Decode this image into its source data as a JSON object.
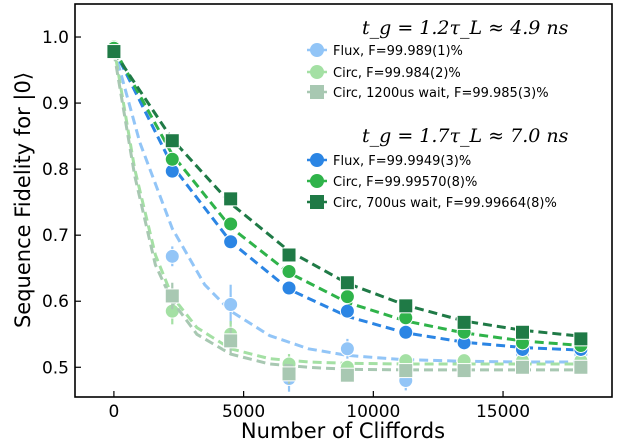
{
  "chart_data": {
    "type": "scatter",
    "xlabel": "Number of Cliffords",
    "ylabel": "Sequence Fidelity for |0⟩",
    "xlim": [
      -1500,
      19200
    ],
    "ylim": [
      0.455,
      1.05
    ],
    "xticks": [
      0,
      5000,
      10000,
      15000
    ],
    "xtick_labels": [
      "0",
      "5000",
      "10000",
      "15000"
    ],
    "yticks": [
      0.5,
      0.6,
      0.7,
      0.8,
      0.9,
      1.0
    ],
    "ytick_labels": [
      "0.5",
      "0.6",
      "0.7",
      "0.8",
      "0.9",
      "1.0"
    ],
    "grid": false,
    "legend_placement": "top-right",
    "groups": [
      {
        "title": "t_g = 1.2τ_L ≈ 4.9 ns",
        "series": [
          {
            "name": "Flux, F=99.989(1)%",
            "marker": "circle",
            "color": "#92c5f7",
            "x": [
              0,
              2250,
              4500,
              6750,
              9000,
              11250,
              13500,
              15750,
              18000
            ],
            "y": [
              0.983,
              0.668,
              0.595,
              0.483,
              0.528,
              0.48,
              0.51,
              0.52,
              0.52
            ],
            "yerr": [
              0.005,
              0.015,
              0.03,
              0.02,
              0.015,
              0.015,
              0.01,
              0.01,
              0.01
            ],
            "fit_x": [
              0,
              1000,
              2250,
              3500,
              4500,
              6000,
              7500,
              9000,
              11000,
              13500,
              15750,
              18000
            ],
            "fit_y": [
              0.983,
              0.84,
              0.71,
              0.625,
              0.585,
              0.548,
              0.528,
              0.518,
              0.512,
              0.509,
              0.508,
              0.508
            ]
          },
          {
            "name": "Circ, F=99.984(2)%",
            "marker": "circle",
            "color": "#a4e0a4",
            "x": [
              0,
              2250,
              4500,
              6750,
              9000,
              11250,
              13500,
              15750,
              18000
            ],
            "y": [
              0.985,
              0.585,
              0.55,
              0.505,
              0.5,
              0.51,
              0.51,
              0.51,
              0.51
            ],
            "yerr": [
              0.005,
              0.02,
              0.02,
              0.015,
              0.01,
              0.01,
              0.01,
              0.01,
              0.01
            ],
            "fit_x": [
              0,
              800,
              1600,
              2250,
              3200,
              4500,
              6000,
              7500,
              9000,
              11250,
              13500,
              15750,
              18000
            ],
            "fit_y": [
              0.985,
              0.8,
              0.67,
              0.607,
              0.56,
              0.528,
              0.513,
              0.508,
              0.506,
              0.505,
              0.505,
              0.505,
              0.505
            ]
          },
          {
            "name": "Circ, 1200us wait, F=99.985(3)%",
            "marker": "square",
            "color": "#a8c8b2",
            "x": [
              0,
              2250,
              4500,
              6750,
              9000,
              11250,
              13500,
              15750,
              18000
            ],
            "y": [
              0.977,
              0.608,
              0.54,
              0.49,
              0.488,
              0.495,
              0.495,
              0.5,
              0.5
            ],
            "yerr": [
              0.005,
              0.02,
              0.02,
              0.015,
              0.01,
              0.01,
              0.01,
              0.01,
              0.01
            ],
            "fit_x": [
              0,
              800,
              1600,
              2250,
              3200,
              4500,
              6000,
              7500,
              9000,
              11250,
              13500,
              15750,
              18000
            ],
            "fit_y": [
              0.977,
              0.79,
              0.655,
              0.6,
              0.55,
              0.52,
              0.505,
              0.5,
              0.497,
              0.496,
              0.496,
              0.496,
              0.496
            ]
          }
        ]
      },
      {
        "title": "t_g = 1.7τ_L ≈ 7.0 ns",
        "series": [
          {
            "name": "Flux, F=99.9949(3)%",
            "marker": "circle",
            "color": "#2b85e4",
            "x": [
              0,
              2250,
              4500,
              6750,
              9000,
              11250,
              13500,
              15750,
              18000
            ],
            "y": [
              0.982,
              0.797,
              0.69,
              0.62,
              0.585,
              0.553,
              0.537,
              0.527,
              0.527
            ],
            "yerr": [
              0.004,
              0.01,
              0.01,
              0.01,
              0.01,
              0.008,
              0.008,
              0.008,
              0.008
            ],
            "fit_x": [
              0,
              2250,
              4500,
              6750,
              9000,
              11250,
              13500,
              15750,
              18000
            ],
            "fit_y": [
              0.982,
              0.805,
              0.69,
              0.618,
              0.577,
              0.552,
              0.538,
              0.53,
              0.526
            ]
          },
          {
            "name": "Circ, F=99.99570(8)%",
            "marker": "circle",
            "color": "#2fb34a",
            "x": [
              0,
              2250,
              4500,
              6750,
              9000,
              11250,
              13500,
              15750,
              18000
            ],
            "y": [
              0.983,
              0.815,
              0.717,
              0.645,
              0.607,
              0.575,
              0.553,
              0.537,
              0.533
            ],
            "yerr": [
              0.004,
              0.01,
              0.01,
              0.01,
              0.01,
              0.008,
              0.008,
              0.008,
              0.008
            ],
            "fit_x": [
              0,
              2250,
              4500,
              6750,
              9000,
              11250,
              13500,
              15750,
              18000
            ],
            "fit_y": [
              0.983,
              0.822,
              0.712,
              0.643,
              0.598,
              0.57,
              0.552,
              0.54,
              0.533
            ]
          },
          {
            "name": "Circ, 700us wait, F=99.99664(8)%",
            "marker": "square",
            "color": "#1f7a46",
            "x": [
              0,
              2250,
              4500,
              6750,
              9000,
              11250,
              13500,
              15750,
              18000
            ],
            "y": [
              0.978,
              0.843,
              0.755,
              0.67,
              0.628,
              0.593,
              0.568,
              0.553,
              0.543
            ],
            "yerr": [
              0.004,
              0.01,
              0.01,
              0.01,
              0.01,
              0.008,
              0.008,
              0.008,
              0.008
            ],
            "fit_x": [
              0,
              2250,
              4500,
              6750,
              9000,
              11250,
              13500,
              15750,
              18000
            ],
            "fit_y": [
              0.978,
              0.845,
              0.748,
              0.676,
              0.627,
              0.594,
              0.57,
              0.556,
              0.547
            ]
          }
        ]
      }
    ]
  }
}
